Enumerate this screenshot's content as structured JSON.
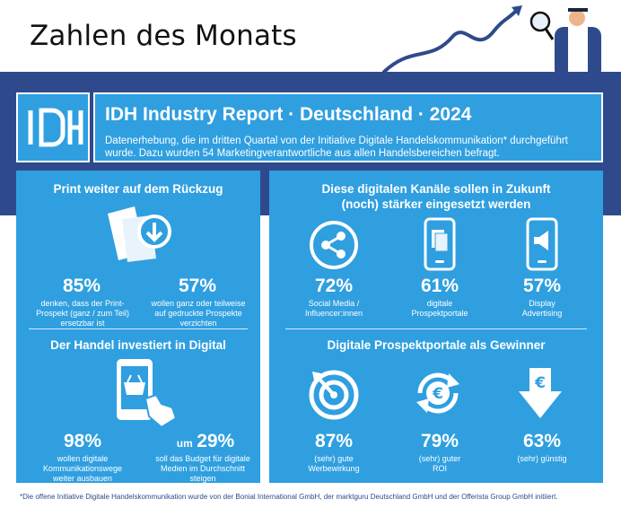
{
  "page_title": "Zahlen des Monats",
  "header": {
    "logo_text": "IDH",
    "title": "IDH Industry Report · Deutschland · 2024",
    "subtitle": "Datenerhebung, die im dritten Quartal von der Initiative Digitale Handelskommunikation* durchgeführt wurde. Dazu wurden 54 Marketingverantwortliche aus allen Handelsbereichen befragt."
  },
  "print": {
    "title": "Print weiter auf dem Rückzug",
    "stat1": {
      "value": "85%",
      "caption": "denken, dass der Print-Prospekt (ganz / zum Teil) ersetzbar ist"
    },
    "stat2": {
      "value": "57%",
      "caption": "wollen ganz oder teilweise auf gedruckte Prospekte verzichten"
    }
  },
  "invest": {
    "title": "Der Handel investiert in Digital",
    "stat1": {
      "value": "98%",
      "caption": "wollen digitale Kommunikationswege weiter ausbauen"
    },
    "stat2": {
      "prefix": "um",
      "value": "29%",
      "caption": "soll das Budget für digitale Medien im Durchschnitt steigen"
    }
  },
  "channels": {
    "title": "Diese digitalen Kanäle sollen in Zukunft (noch) stärker eingesetzt werden",
    "items": [
      {
        "value": "72%",
        "caption": "Social Media / Influencer:innen",
        "icon": "share-icon"
      },
      {
        "value": "61%",
        "caption": "digitale Prospektportale",
        "icon": "phone-pages-icon"
      },
      {
        "value": "57%",
        "caption": "Display Advertising",
        "icon": "phone-megaphone-icon"
      }
    ]
  },
  "winners": {
    "title": "Digitale Prospektportale als Gewinner",
    "items": [
      {
        "value": "87%",
        "caption": "(sehr) gute Werbewirkung",
        "icon": "target-icon"
      },
      {
        "value": "79%",
        "caption": "(sehr) guter ROI",
        "icon": "euro-cycle-icon"
      },
      {
        "value": "63%",
        "caption": "(sehr) günstig",
        "icon": "euro-down-icon"
      }
    ]
  },
  "footnote": "*Die offene Initiative Digitale Handelskommunikation wurde von der Bonial International GmbH, der marktguru Deutschland GmbH und der Offerista Group GmbH initiiert.",
  "colors": {
    "navy": "#2f4a8c",
    "blue": "#2f9fe0",
    "white": "#ffffff"
  }
}
